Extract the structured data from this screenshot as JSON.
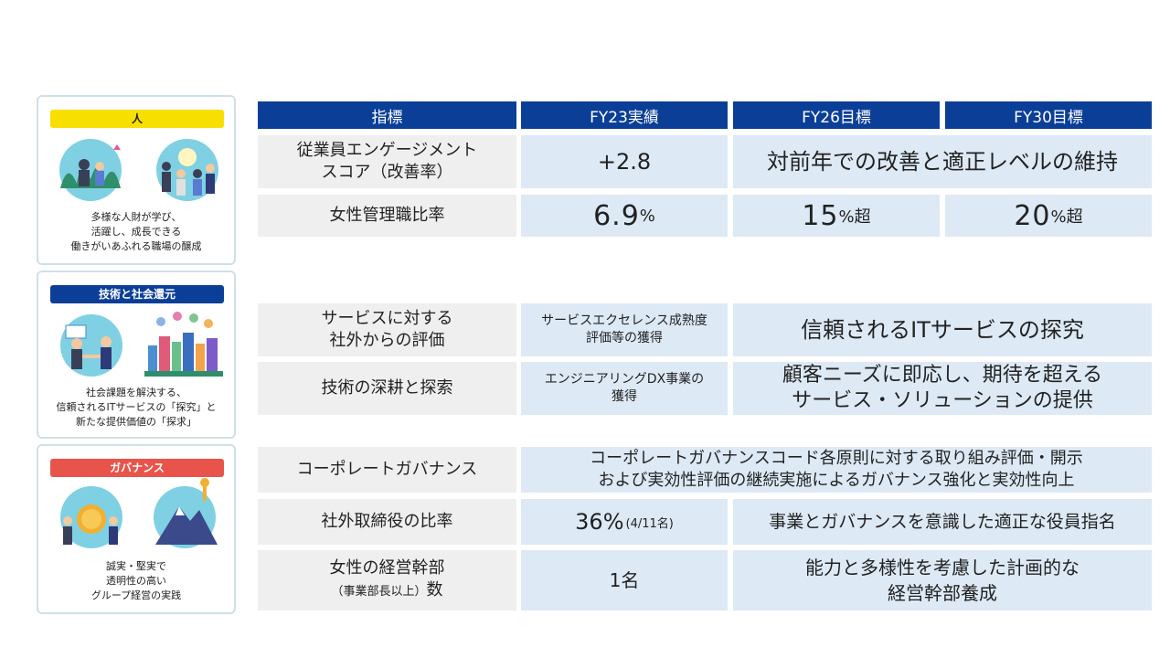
{
  "cards": [
    {
      "tag": "人",
      "text": "多様な人財が学び、\n活躍し、成長できる\n働きがいあふれる職場の醸成",
      "tag_color": "#f7e000",
      "tag_text_color": "#222222"
    },
    {
      "tag": "技術と社会還元",
      "text": "社会課題を解決する、\n信頼されるITサービスの「探究」と\n新たな提供価値の「探求」",
      "tag_color": "#0b3f97",
      "tag_text_color": "#ffffff"
    },
    {
      "tag": "ガバナンス",
      "text": "誠実・堅実で\n透明性の高い\nグループ経営の実践",
      "tag_color": "#e8544a",
      "tag_text_color": "#ffffff"
    }
  ],
  "header": {
    "col1": "指標",
    "col2": "FY23実績",
    "col3": "FY26目標",
    "col4": "FY30目標"
  },
  "rows": {
    "engagement": {
      "label": "従業員エンゲージメント\nスコア（改善率）",
      "fy23": "+2.8",
      "target": "対前年での改善と適正レベルの維持"
    },
    "women_mgmt": {
      "label": "女性管理職比率",
      "fy23_num": "6.9",
      "fy23_unit": "%",
      "fy26_num": "15",
      "fy26_unit": "%超",
      "fy30_num": "20",
      "fy30_unit": "%超"
    },
    "service_eval": {
      "label": "サービスに対する\n社外からの評価",
      "fy23": "サービスエクセレンス成熟度\n評価等の獲得",
      "target": "信頼されるITサービスの探究"
    },
    "tech": {
      "label": "技術の深耕と探索",
      "fy23": "エンジニアリングDX事業の\n獲得",
      "target": "顧客ニーズに即応し、期待を超える\nサービス・ソリューションの提供"
    },
    "governance": {
      "label": "コーポレートガバナンス",
      "value": "コーポレートガバナンスコード各原則に対する取り組み評価・開示\nおよび実効性評価の継続実施によるガバナンス強化と実効性向上"
    },
    "outside_dir": {
      "label": "社外取締役の比率",
      "fy23_num": "36%",
      "fy23_sub": "(4/11名)",
      "target": "事業とガバナンスを意識した適正な役員指名"
    },
    "women_exec": {
      "label_main": "女性の経営幹部",
      "label_sub": "（事業部長以上）",
      "label_tail": "数",
      "fy23": "1名",
      "target": "能力と多様性を考慮した計画的な\n経営幹部養成"
    }
  },
  "colors": {
    "header_bg": "#0b3f97",
    "label_bg": "#efefef",
    "value_bg": "#dde9f5",
    "card_border": "#cfe0e8"
  }
}
